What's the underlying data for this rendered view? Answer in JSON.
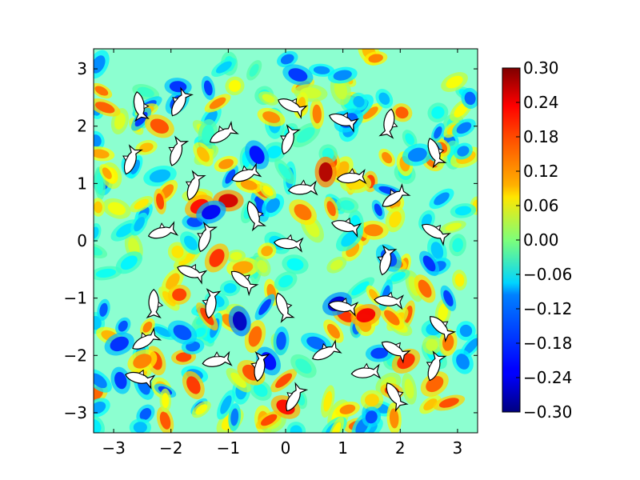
{
  "chart_data": {
    "type": "heatmap",
    "title": "",
    "xlabel": "",
    "ylabel": "",
    "xlim": [
      -3.35,
      3.35
    ],
    "ylim": [
      -3.35,
      3.35
    ],
    "x_ticks": [
      -3,
      -2,
      -1,
      0,
      1,
      2,
      3
    ],
    "x_tick_labels": [
      "−3",
      "−2",
      "−1",
      "0",
      "1",
      "2",
      "3"
    ],
    "y_ticks": [
      3,
      2,
      1,
      0,
      -1,
      -2,
      -3
    ],
    "y_tick_labels": [
      "3",
      "2",
      "1",
      "0",
      "−1",
      "−2",
      "−3"
    ],
    "colorbar": {
      "colormap": "jet",
      "vmin": -0.3,
      "vmax": 0.3,
      "ticks": [
        0.3,
        0.24,
        0.18,
        0.12,
        0.06,
        0.0,
        -0.06,
        -0.12,
        -0.18,
        -0.24,
        -0.3
      ],
      "tick_labels": [
        "0.30",
        "0.24",
        "0.18",
        "0.12",
        "0.06",
        "0.00",
        "−0.06",
        "−0.12",
        "−0.18",
        "−0.24",
        "−0.30"
      ]
    },
    "grid": false,
    "legend": "none",
    "field_sample_peaks": [
      {
        "x": -2.2,
        "y": 2.0,
        "v": 0.18
      },
      {
        "x": -1.5,
        "y": 0.6,
        "v": 0.22
      },
      {
        "x": -1.0,
        "y": 0.7,
        "v": 0.25
      },
      {
        "x": -1.2,
        "y": -0.3,
        "v": 0.2
      },
      {
        "x": 0.7,
        "y": 1.2,
        "v": 0.27
      },
      {
        "x": 1.4,
        "y": -1.3,
        "v": 0.23
      },
      {
        "x": 2.1,
        "y": -2.1,
        "v": 0.2
      },
      {
        "x": 0.0,
        "y": -2.9,
        "v": 0.22
      },
      {
        "x": -0.6,
        "y": -2.3,
        "v": 0.18
      },
      {
        "x": -2.5,
        "y": -2.1,
        "v": 0.15
      },
      {
        "x": 2.6,
        "y": -2.5,
        "v": 0.17
      },
      {
        "x": 0.3,
        "y": 0.5,
        "v": 0.16
      },
      {
        "x": -0.8,
        "y": -1.4,
        "v": -0.26
      },
      {
        "x": 0.9,
        "y": -1.1,
        "v": -0.25
      },
      {
        "x": -0.5,
        "y": 1.5,
        "v": -0.22
      },
      {
        "x": -1.3,
        "y": 0.5,
        "v": -0.23
      },
      {
        "x": -2.9,
        "y": -1.8,
        "v": -0.2
      },
      {
        "x": 1.8,
        "y": -0.3,
        "v": -0.18
      },
      {
        "x": 1.1,
        "y": 2.1,
        "v": -0.17
      },
      {
        "x": -0.3,
        "y": -2.1,
        "v": -0.22
      },
      {
        "x": 2.3,
        "y": 1.5,
        "v": -0.15
      },
      {
        "x": -1.8,
        "y": -1.6,
        "v": -0.18
      }
    ],
    "markers": {
      "description": "fish-shaped white markers",
      "points": [
        {
          "x": -2.55,
          "y": 2.35,
          "angle": 80
        },
        {
          "x": -1.85,
          "y": 2.4,
          "angle": -60
        },
        {
          "x": -1.1,
          "y": 1.85,
          "angle": -30
        },
        {
          "x": -2.7,
          "y": 1.4,
          "angle": -70
        },
        {
          "x": -1.9,
          "y": 1.55,
          "angle": -70
        },
        {
          "x": -1.6,
          "y": 0.95,
          "angle": -70
        },
        {
          "x": -0.7,
          "y": 1.15,
          "angle": -20
        },
        {
          "x": 0.05,
          "y": 1.75,
          "angle": -70
        },
        {
          "x": 0.1,
          "y": 2.35,
          "angle": 25
        },
        {
          "x": 1.0,
          "y": 2.1,
          "angle": 20
        },
        {
          "x": 1.8,
          "y": 2.05,
          "angle": 100
        },
        {
          "x": 2.6,
          "y": 1.55,
          "angle": 70
        },
        {
          "x": 1.15,
          "y": 1.1,
          "angle": -5
        },
        {
          "x": 0.3,
          "y": 0.9,
          "angle": -5
        },
        {
          "x": 1.9,
          "y": 0.75,
          "angle": -35
        },
        {
          "x": -0.55,
          "y": 0.45,
          "angle": 70
        },
        {
          "x": -2.15,
          "y": 0.15,
          "angle": -15
        },
        {
          "x": -1.4,
          "y": 0.05,
          "angle": -70
        },
        {
          "x": 0.05,
          "y": -0.05,
          "angle": 5
        },
        {
          "x": 1.05,
          "y": 0.25,
          "angle": 15
        },
        {
          "x": 2.6,
          "y": 0.15,
          "angle": 30
        },
        {
          "x": 1.75,
          "y": -0.35,
          "angle": -75
        },
        {
          "x": -1.65,
          "y": -0.55,
          "angle": 20
        },
        {
          "x": -0.75,
          "y": -0.7,
          "angle": 40
        },
        {
          "x": -2.3,
          "y": -1.1,
          "angle": 90
        },
        {
          "x": -1.3,
          "y": -1.1,
          "angle": -80
        },
        {
          "x": -0.05,
          "y": -1.15,
          "angle": 70
        },
        {
          "x": 1.0,
          "y": -1.15,
          "angle": 10
        },
        {
          "x": 1.8,
          "y": -1.05,
          "angle": 5
        },
        {
          "x": 2.7,
          "y": -1.5,
          "angle": 45
        },
        {
          "x": -2.45,
          "y": -1.75,
          "angle": -30
        },
        {
          "x": -1.2,
          "y": -2.1,
          "angle": -10
        },
        {
          "x": -0.45,
          "y": -2.2,
          "angle": -80
        },
        {
          "x": 0.7,
          "y": -1.95,
          "angle": -25
        },
        {
          "x": 1.9,
          "y": -1.9,
          "angle": 30
        },
        {
          "x": 2.6,
          "y": -2.2,
          "angle": -70
        },
        {
          "x": -2.55,
          "y": -2.4,
          "angle": 15
        },
        {
          "x": 1.4,
          "y": -2.3,
          "angle": -5
        },
        {
          "x": 0.15,
          "y": -2.75,
          "angle": -60
        },
        {
          "x": 1.9,
          "y": -2.7,
          "angle": 60
        }
      ]
    }
  }
}
